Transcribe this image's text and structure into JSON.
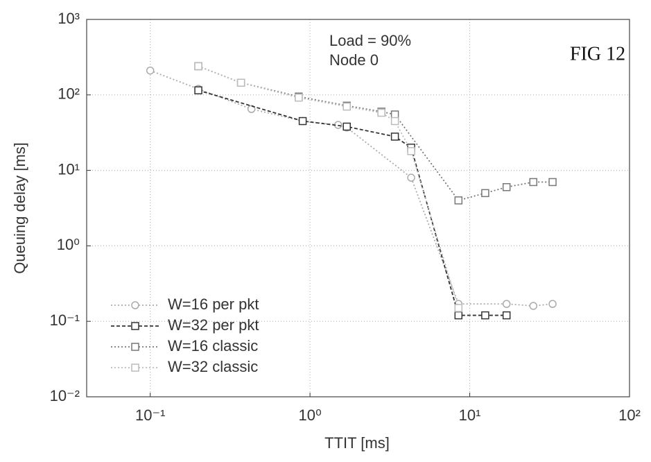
{
  "chart_data": {
    "type": "line",
    "x_label": "TTIT [ms]",
    "y_label": "Queuing delay [ms]",
    "annotations": [
      "Load = 90%",
      "Node 0"
    ],
    "figure_label": "FIG 12",
    "xscale": "log",
    "yscale": "log",
    "grid": true,
    "legend": "lower left",
    "xlim": [
      0.04,
      100
    ],
    "ylim": [
      0.01,
      1000
    ],
    "xticks": [
      {
        "value": 0.1,
        "label": "10⁻¹"
      },
      {
        "value": 1,
        "label": "10⁰"
      },
      {
        "value": 10,
        "label": "10¹"
      },
      {
        "value": 100,
        "label": "10²"
      }
    ],
    "yticks": [
      {
        "value": 0.01,
        "label": "10⁻²"
      },
      {
        "value": 0.1,
        "label": "10⁻¹"
      },
      {
        "value": 1,
        "label": "10⁰"
      },
      {
        "value": 10,
        "label": "10¹"
      },
      {
        "value": 100,
        "label": "10²"
      },
      {
        "value": 1000,
        "label": "10³"
      }
    ],
    "series": [
      {
        "name": "W=16 per pkt",
        "color": "#aaaaaa",
        "linestyle": "dotted",
        "marker": "circle",
        "x": [
          0.1,
          0.2,
          0.43,
          0.9,
          1.5,
          1.7,
          4.3,
          8.5,
          17,
          25,
          33
        ],
        "values": [
          210,
          120,
          65,
          45,
          40,
          37,
          8,
          0.17,
          0.17,
          0.16,
          0.17
        ]
      },
      {
        "name": "W=32 per pkt",
        "color": "#333333",
        "linestyle": "dashed",
        "marker": "square",
        "x": [
          0.2,
          0.9,
          1.7,
          3.4,
          4.3,
          8.5,
          12.5,
          17
        ],
        "values": [
          115,
          45,
          38,
          28,
          20,
          0.12,
          0.12,
          0.12
        ]
      },
      {
        "name": "W=16 classic",
        "color": "#777777",
        "linestyle": "dotted",
        "marker": "square",
        "x": [
          0.2,
          0.37,
          0.85,
          1.7,
          2.8,
          3.4,
          8.5,
          12.5,
          17,
          25,
          33
        ],
        "values": [
          240,
          145,
          95,
          72,
          60,
          55,
          4,
          5,
          6,
          7,
          7
        ]
      },
      {
        "name": "W=32 classic",
        "color": "#bbbbbb",
        "linestyle": "dotted",
        "marker": "square",
        "x": [
          0.2,
          0.37,
          0.85,
          1.7,
          2.8,
          3.4,
          4.3,
          8.5
        ],
        "values": [
          240,
          145,
          92,
          70,
          58,
          45,
          18,
          0.15
        ]
      }
    ]
  }
}
